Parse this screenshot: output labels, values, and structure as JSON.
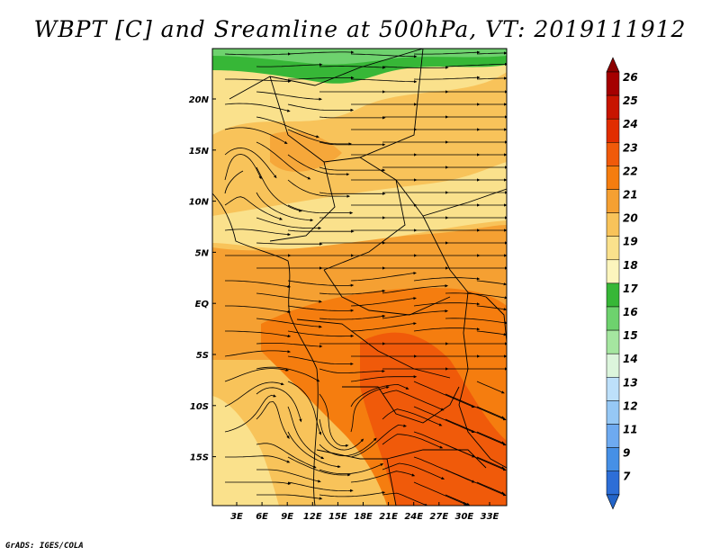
{
  "title": "WBPT [C] and Sreamline at 500hPa, VT: 2019111912",
  "credit": "GrADS: IGES/COLA",
  "map": {
    "lat_labels": [
      "20N",
      "15N",
      "10N",
      "5N",
      "EQ",
      "5S",
      "10S",
      "15S"
    ],
    "lon_labels": [
      "3E",
      "6E",
      "9E",
      "12E",
      "15E",
      "18E",
      "21E",
      "24E",
      "27E",
      "30E",
      "33E"
    ]
  },
  "colorbar": {
    "labels": [
      "26",
      "25",
      "24",
      "23",
      "22",
      "21",
      "20",
      "19",
      "18",
      "17",
      "16",
      "15",
      "14",
      "13",
      "12",
      "11",
      "9",
      "7"
    ],
    "colors": [
      "#a50000",
      "#c81400",
      "#e12d00",
      "#f05a0a",
      "#f57d0f",
      "#f5a032",
      "#f8c35a",
      "#fae18c",
      "#fcf5bd",
      "#37b737",
      "#6ed26e",
      "#a5e6a0",
      "#dcf5dc",
      "#bde0fa",
      "#96c8f5",
      "#6eaaf0",
      "#4690e6",
      "#2d6ed7"
    ],
    "top_arrow_color": "#8c0000",
    "bottom_arrow_color": "#2364c8"
  }
}
